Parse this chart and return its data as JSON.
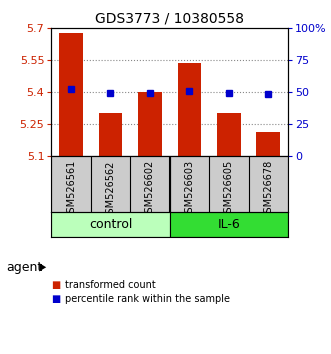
{
  "title": "GDS3773 / 10380558",
  "samples": [
    "GSM526561",
    "GSM526562",
    "GSM526602",
    "GSM526603",
    "GSM526605",
    "GSM526678"
  ],
  "red_values": [
    5.68,
    5.3,
    5.4,
    5.535,
    5.3,
    5.21
  ],
  "blue_values": [
    5.415,
    5.395,
    5.395,
    5.405,
    5.395,
    5.39
  ],
  "ylim": [
    5.1,
    5.7
  ],
  "yticks": [
    5.1,
    5.25,
    5.4,
    5.55,
    5.7
  ],
  "ytick_labels": [
    "5.1",
    "5.25",
    "5.4",
    "5.55",
    "5.7"
  ],
  "right_yticks": [
    0,
    25,
    50,
    75,
    100
  ],
  "right_ytick_labels": [
    "0",
    "25",
    "50",
    "75",
    "100%"
  ],
  "hlines": [
    5.25,
    5.4,
    5.55
  ],
  "groups": [
    {
      "label": "control",
      "indices": [
        0,
        1,
        2
      ],
      "color": "#bbffbb"
    },
    {
      "label": "IL-6",
      "indices": [
        3,
        4,
        5
      ],
      "color": "#33dd33"
    }
  ],
  "agent_label": "agent",
  "bar_bottom": 5.1,
  "red_color": "#cc2200",
  "blue_color": "#0000cc",
  "left_tick_color": "#cc2200",
  "right_tick_color": "#0000cc",
  "legend_red": "transformed count",
  "legend_blue": "percentile rank within the sample",
  "bg_color": "#ffffff",
  "plot_bg": "#ffffff",
  "label_bg": "#cccccc",
  "grid_color": "#888888",
  "bar_width": 0.6,
  "blue_marker_size": 5
}
